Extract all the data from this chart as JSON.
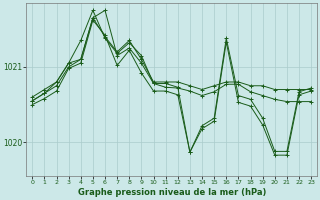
{
  "xlabel": "Graphe pression niveau de la mer (hPa)",
  "background_color": "#cce8e8",
  "grid_color": "#aacccc",
  "line_color": "#1a5c1a",
  "ylim": [
    1019.55,
    1021.85
  ],
  "xlim": [
    -0.5,
    23.5
  ],
  "yticks": [
    1020,
    1021
  ],
  "xticks": [
    0,
    1,
    2,
    3,
    4,
    5,
    6,
    7,
    8,
    9,
    10,
    11,
    12,
    13,
    14,
    15,
    16,
    17,
    18,
    19,
    20,
    21,
    22,
    23
  ],
  "series": [
    [
      1020.55,
      1020.65,
      1020.8,
      1021.05,
      1021.1,
      1021.65,
      1021.4,
      1021.2,
      1021.35,
      1021.1,
      1020.8,
      1020.8,
      1020.8,
      1020.75,
      1020.7,
      1020.75,
      1020.8,
      1020.8,
      1020.75,
      1020.75,
      1020.7,
      1020.7,
      1020.7,
      1020.7
    ],
    [
      1020.6,
      1020.7,
      1020.8,
      1021.05,
      1021.35,
      1021.75,
      1021.38,
      1021.18,
      1021.32,
      1021.15,
      1020.78,
      1020.73,
      1020.72,
      1020.68,
      1020.62,
      1020.67,
      1020.77,
      1020.77,
      1020.67,
      1020.62,
      1020.57,
      1020.54,
      1020.54,
      1020.54
    ],
    [
      1020.55,
      1020.65,
      1020.75,
      1021.0,
      1021.1,
      1021.65,
      1021.75,
      1021.15,
      1021.25,
      1021.05,
      1020.78,
      1020.78,
      1020.73,
      1019.87,
      1020.22,
      1020.32,
      1021.38,
      1020.62,
      1020.57,
      1020.32,
      1019.88,
      1019.88,
      1020.67,
      1020.72
    ],
    [
      1020.5,
      1020.58,
      1020.68,
      1020.98,
      1021.05,
      1021.62,
      1021.42,
      1021.02,
      1021.22,
      1020.92,
      1020.68,
      1020.68,
      1020.63,
      1019.87,
      1020.18,
      1020.28,
      1021.33,
      1020.53,
      1020.48,
      1020.23,
      1019.83,
      1019.83,
      1020.63,
      1020.68
    ]
  ]
}
